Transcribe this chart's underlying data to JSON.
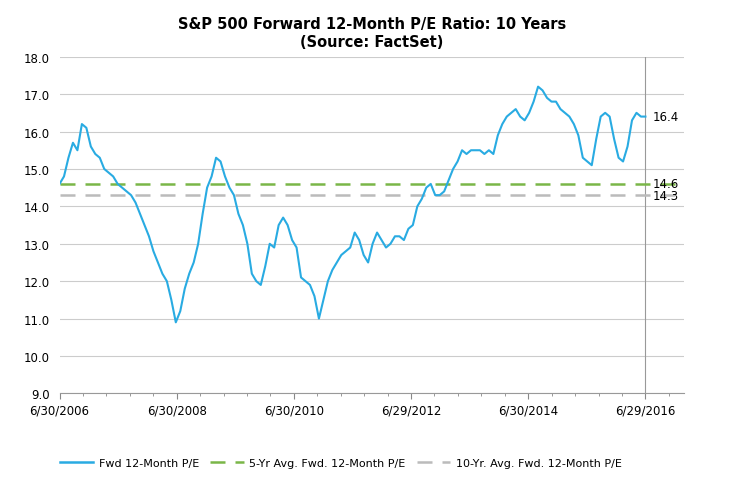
{
  "title_line1": "S&P 500 Forward 12-Month P/E Ratio: 10 Years",
  "title_line2": "(Source: FactSet)",
  "avg_5yr": 14.6,
  "avg_10yr": 14.3,
  "last_value": 16.4,
  "ylim": [
    9.0,
    18.0
  ],
  "yticks": [
    9.0,
    10.0,
    11.0,
    12.0,
    13.0,
    14.0,
    15.0,
    16.0,
    17.0,
    18.0
  ],
  "xtick_labels": [
    "6/30/2006",
    "6/30/2008",
    "6/30/2010",
    "6/29/2012",
    "6/30/2014",
    "6/29/2016"
  ],
  "line_color": "#29ABE2",
  "avg5_color": "#7AB648",
  "avg10_color": "#BBBBBB",
  "background_color": "#FFFFFF",
  "grid_color": "#CCCCCC",
  "legend_labels": [
    "Fwd 12-Month P/E",
    "5-Yr Avg. Fwd. 12-Month P/E",
    "10-Yr. Avg. Fwd. 12-Month P/E"
  ],
  "pe_data": [
    14.6,
    14.8,
    15.3,
    15.7,
    15.5,
    16.2,
    16.1,
    15.6,
    15.4,
    15.3,
    15.0,
    14.9,
    14.8,
    14.6,
    14.5,
    14.4,
    14.3,
    14.1,
    13.8,
    13.5,
    13.2,
    12.8,
    12.5,
    12.2,
    12.0,
    11.5,
    10.9,
    11.2,
    11.8,
    12.2,
    12.5,
    13.0,
    13.8,
    14.5,
    14.8,
    15.3,
    15.2,
    14.8,
    14.5,
    14.3,
    13.8,
    13.5,
    13.0,
    12.2,
    12.0,
    11.9,
    12.4,
    13.0,
    12.9,
    13.5,
    13.7,
    13.5,
    13.1,
    12.9,
    12.1,
    12.0,
    11.9,
    11.6,
    11.0,
    11.5,
    12.0,
    12.3,
    12.5,
    12.7,
    12.8,
    12.9,
    13.3,
    13.1,
    12.7,
    12.5,
    13.0,
    13.3,
    13.1,
    12.9,
    13.0,
    13.2,
    13.2,
    13.1,
    13.4,
    13.5,
    14.0,
    14.2,
    14.5,
    14.6,
    14.3,
    14.3,
    14.4,
    14.7,
    15.0,
    15.2,
    15.5,
    15.4,
    15.5,
    15.5,
    15.5,
    15.4,
    15.5,
    15.4,
    15.9,
    16.2,
    16.4,
    16.5,
    16.6,
    16.4,
    16.3,
    16.5,
    16.8,
    17.2,
    17.1,
    16.9,
    16.8,
    16.8,
    16.6,
    16.5,
    16.4,
    16.2,
    15.9,
    15.3,
    15.2,
    15.1,
    15.8,
    16.4,
    16.5,
    16.4,
    15.8,
    15.3,
    15.2,
    15.6,
    16.3,
    16.5,
    16.4,
    16.4
  ]
}
